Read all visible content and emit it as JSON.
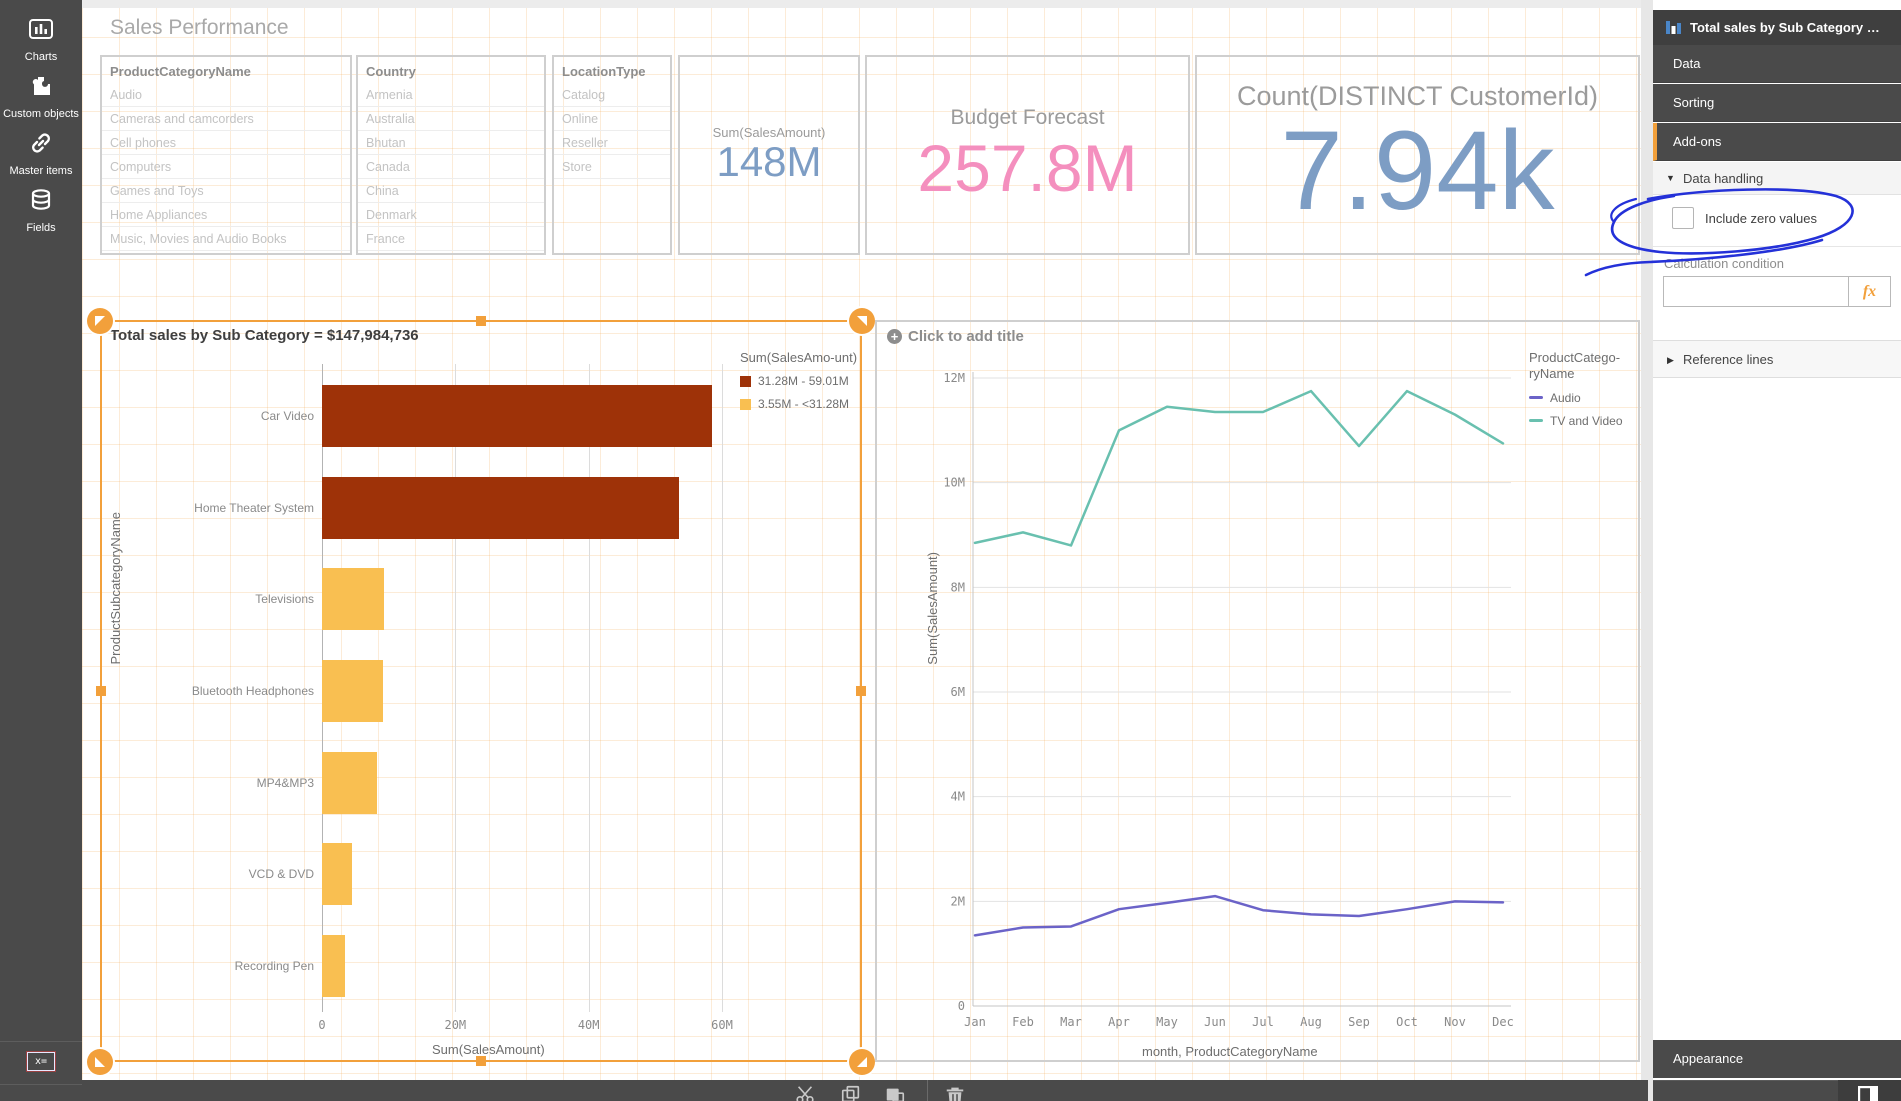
{
  "app": {
    "sidebar": {
      "items": [
        {
          "label": "Charts"
        },
        {
          "label": "Custom objects"
        },
        {
          "label": "Master items"
        },
        {
          "label": "Fields"
        }
      ],
      "variable_icon_text": "x="
    },
    "canvas": {
      "title": "Sales Performance",
      "filters": [
        {
          "title": "ProductCategoryName",
          "items": [
            "Audio",
            "Cameras and camcorders",
            "Cell phones",
            "Computers",
            "Games and Toys",
            "Home Appliances",
            "Music, Movies and Audio Books"
          ]
        },
        {
          "title": "Country",
          "items": [
            "Armenia",
            "Australia",
            "Bhutan",
            "Canada",
            "China",
            "Denmark",
            "France"
          ]
        },
        {
          "title": "LocationType",
          "items": [
            "Catalog",
            "Online",
            "Reseller",
            "Store"
          ]
        }
      ],
      "kpis": [
        {
          "label": "Sum(SalesAmount)",
          "value": "148M",
          "value_color": "#7d9dc4"
        },
        {
          "label": "Budget Forecast",
          "value": "257.8M",
          "value_color": "#f48fbe"
        },
        {
          "label": "Count(DISTINCT CustomerId)",
          "value": "7.94k",
          "value_color": "#7d9dc4"
        }
      ]
    },
    "right_panel": {
      "header": "Total sales by Sub Category = $...",
      "menu": {
        "data": "Data",
        "sorting": "Sorting",
        "addons": "Add-ons"
      },
      "data_handling": "Data handling",
      "include_zero_values": "Include zero values",
      "include_zero_checked": false,
      "calculation_condition": "Calculation condition",
      "calculation_condition_value": "",
      "fx_label": "fx",
      "reference_lines": "Reference lines",
      "appearance": "Appearance"
    },
    "colors": {
      "selection_accent": "#f2a03b",
      "annotation_blue": "#2431d8",
      "kpi_blue": "#7d9dc4",
      "kpi_pink": "#f48fbe",
      "bar_dark_red": "#9e3208",
      "bar_orange": "#f9bf51",
      "line_purple": "#6b63c8",
      "line_teal": "#69c0af"
    }
  },
  "chart_data": [
    {
      "type": "bar",
      "title": "Total sales by Sub Category = $147,984,736",
      "orientation": "horizontal",
      "categories": [
        "Car Video",
        "Home Theater System",
        "Televisions",
        "Bluetooth Headphones",
        "MP4&MP3",
        "VCD & DVD",
        "Recording Pen"
      ],
      "values_M": [
        59.01,
        54.0,
        9.4,
        9.2,
        8.3,
        4.5,
        3.55
      ],
      "bar_colors": [
        "#9e3208",
        "#9e3208",
        "#f9bf51",
        "#f9bf51",
        "#f9bf51",
        "#f9bf51",
        "#f9bf51"
      ],
      "xlabel": "Sum(SalesAmount)",
      "ylabel": "ProductSubcategoryName",
      "x_ticks": [
        "0",
        "20M",
        "40M",
        "60M"
      ],
      "x_max_M": 60.5,
      "grid": true,
      "legend": {
        "title": "Sum(SalesAmo-unt)",
        "position": "right",
        "entries": [
          {
            "label": "31.28M - 59.01M",
            "color": "#9e3208"
          },
          {
            "label": "3.55M - <31.28M",
            "color": "#f9bf51"
          }
        ]
      }
    },
    {
      "type": "line",
      "title": "Click to add title",
      "x": [
        "Jan",
        "Feb",
        "Mar",
        "Apr",
        "May",
        "Jun",
        "Jul",
        "Aug",
        "Sep",
        "Oct",
        "Nov",
        "Dec"
      ],
      "series": [
        {
          "name": "Audio",
          "color": "#6b63c8",
          "values_M": [
            1.35,
            1.5,
            1.52,
            1.85,
            1.97,
            2.1,
            1.83,
            1.75,
            1.72,
            1.85,
            2.0,
            1.98
          ]
        },
        {
          "name": "TV and Video",
          "color": "#69c0af",
          "values_M": [
            8.85,
            9.05,
            8.8,
            11.0,
            11.45,
            11.35,
            11.35,
            11.75,
            10.7,
            11.75,
            11.3,
            10.75
          ]
        }
      ],
      "xlabel": "month, ProductCategoryName",
      "ylabel": "Sum(SalesAmount)",
      "y_ticks": [
        "0",
        "2M",
        "4M",
        "6M",
        "8M",
        "10M",
        "12M"
      ],
      "ylim": [
        0,
        12.4
      ],
      "grid": true,
      "legend_title": "ProductCatego-ryName",
      "legend_position": "right"
    }
  ]
}
